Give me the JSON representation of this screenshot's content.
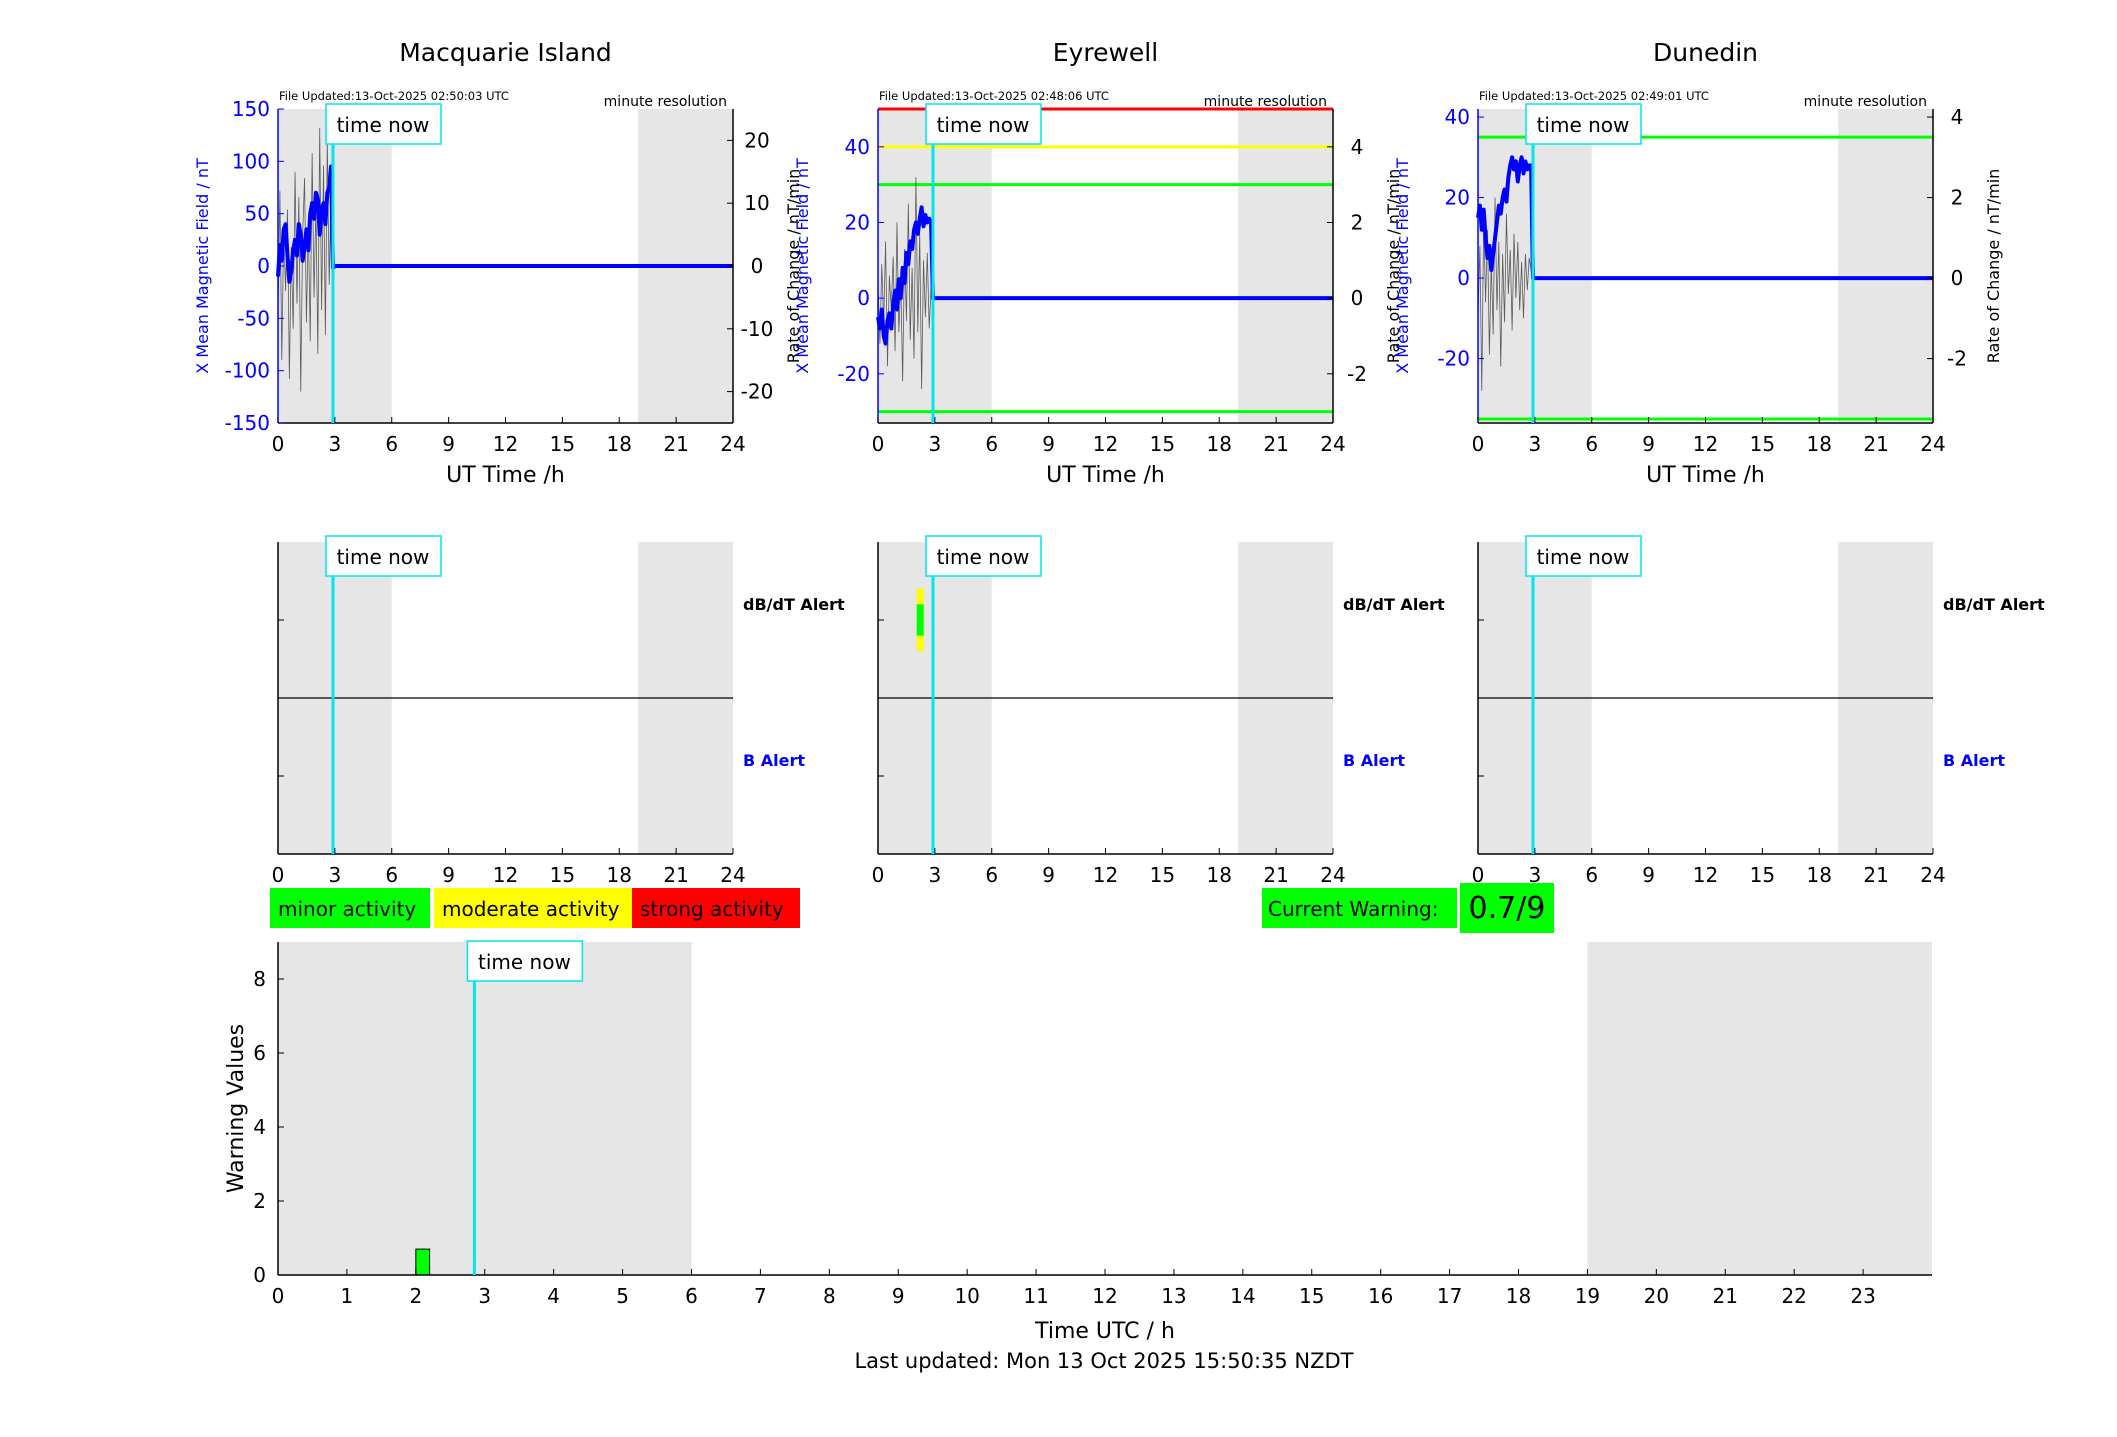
{
  "colors": {
    "night_shade": "#e6e6e6",
    "x_field": "#0000ff",
    "rate": "#000000",
    "time_now": "#00e5ee",
    "minor": "#00ff00",
    "moderate": "#ffff00",
    "strong": "#ff0000",
    "title": "#000000"
  },
  "common": {
    "resolution_label": "minute resolution",
    "time_now_label": "time now",
    "x_label": "UT Time /h",
    "x_ticks": [
      "0",
      "3",
      "6",
      "9",
      "12",
      "15",
      "18",
      "21",
      "24"
    ],
    "time_now_hour": 2.9,
    "night_shade_hours": [
      [
        0,
        6
      ],
      [
        19,
        24
      ]
    ],
    "right_axis_label": "Rate of Change / nT/min",
    "left_axis_label": "X Mean Magnetic Field / nT",
    "dbdt_alert_label": "dB/dT Alert",
    "b_alert_label": "B Alert"
  },
  "chart_data": [
    {
      "type": "line",
      "title": "Macquarie Island",
      "file_updated": "File Updated:13-Oct-2025 02:50:03 UTC",
      "xlim": [
        0,
        24
      ],
      "ylim": [
        -150,
        150
      ],
      "y_ticks": [
        "150",
        "100",
        "50",
        "0",
        "-50",
        "-100",
        "-150"
      ],
      "y2lim": [
        -25,
        25
      ],
      "y2_ticks": [
        "20",
        "10",
        "0",
        "-10",
        "-20"
      ],
      "series": [
        {
          "role": "x_field",
          "x": [
            0,
            0.1,
            0.2,
            0.3,
            0.4,
            0.5,
            0.6,
            0.7,
            0.8,
            0.9,
            1.0,
            1.1,
            1.2,
            1.3,
            1.4,
            1.5,
            1.6,
            1.7,
            1.8,
            1.9,
            2.0,
            2.1,
            2.2,
            2.3,
            2.4,
            2.5,
            2.6,
            2.7,
            2.8,
            2.9,
            3.0,
            24
          ],
          "y": [
            -10,
            20,
            5,
            35,
            40,
            10,
            -15,
            -5,
            15,
            25,
            10,
            40,
            30,
            5,
            20,
            35,
            15,
            50,
            60,
            45,
            70,
            65,
            30,
            55,
            60,
            40,
            70,
            75,
            95,
            -2,
            0,
            0
          ]
        },
        {
          "role": "rate",
          "x": [
            0,
            0.1,
            0.2,
            0.3,
            0.4,
            0.5,
            0.6,
            0.7,
            0.8,
            0.9,
            1.0,
            1.1,
            1.2,
            1.3,
            1.4,
            1.5,
            1.6,
            1.7,
            1.8,
            1.9,
            2.0,
            2.1,
            2.2,
            2.3,
            2.4,
            2.5,
            2.6,
            2.7,
            2.8,
            2.9,
            3.0,
            24
          ],
          "y": [
            -8,
            12,
            -15,
            6,
            -4,
            9,
            -18,
            3,
            -10,
            15,
            -6,
            11,
            -20,
            5,
            14,
            -9,
            7,
            -12,
            18,
            -5,
            10,
            -14,
            22,
            -7,
            16,
            -11,
            20,
            -3,
            12,
            0,
            0,
            0
          ]
        }
      ],
      "thresholds": []
    },
    {
      "type": "line",
      "title": "Eyrewell",
      "file_updated": "File Updated:13-Oct-2025 02:48:06 UTC",
      "xlim": [
        0,
        24
      ],
      "ylim": [
        -33,
        50
      ],
      "y_ticks": [
        "40",
        "20",
        "0",
        "-20"
      ],
      "y2lim": [
        -3.3,
        5
      ],
      "y2_ticks": [
        "4",
        "2",
        "0",
        "-2"
      ],
      "series": [
        {
          "role": "x_field",
          "x": [
            0,
            0.1,
            0.2,
            0.3,
            0.4,
            0.5,
            0.6,
            0.7,
            0.8,
            0.9,
            1.0,
            1.1,
            1.2,
            1.3,
            1.4,
            1.5,
            1.6,
            1.7,
            1.8,
            1.9,
            2.0,
            2.1,
            2.2,
            2.3,
            2.4,
            2.5,
            2.6,
            2.7,
            2.8,
            2.9,
            3.0,
            24
          ],
          "y": [
            -5,
            -8,
            -3,
            -10,
            -12,
            -6,
            -4,
            -8,
            -2,
            2,
            -3,
            5,
            0,
            8,
            4,
            12,
            9,
            15,
            13,
            18,
            20,
            17,
            21,
            24,
            19,
            22,
            20,
            21,
            20,
            0,
            0,
            0
          ]
        },
        {
          "role": "rate",
          "x": [
            0,
            0.1,
            0.2,
            0.3,
            0.4,
            0.5,
            0.6,
            0.7,
            0.8,
            0.9,
            1.0,
            1.1,
            1.2,
            1.3,
            1.4,
            1.5,
            1.6,
            1.7,
            1.8,
            1.9,
            2.0,
            2.1,
            2.2,
            2.3,
            2.4,
            2.5,
            2.6,
            2.7,
            2.8,
            2.9,
            3.0,
            24
          ],
          "y": [
            0.4,
            -1.2,
            0.9,
            -0.7,
            1.5,
            -1.8,
            0.6,
            -0.3,
            1.1,
            -1.4,
            2.0,
            -0.9,
            0.5,
            -2.2,
            1.3,
            -0.6,
            2.5,
            -1.1,
            0.8,
            -1.6,
            3.2,
            -0.9,
            1.7,
            -2.4,
            1.0,
            -0.5,
            1.2,
            -0.8,
            0.3,
            0,
            0,
            0
          ]
        }
      ],
      "thresholds": [
        {
          "y2": 5,
          "color": "#ff0000"
        },
        {
          "y2": 4,
          "color": "#ffff00"
        },
        {
          "y2": 3,
          "color": "#00ff00"
        },
        {
          "y2": -3,
          "color": "#00ff00"
        }
      ]
    },
    {
      "type": "line",
      "title": "Dunedin",
      "file_updated": "File Updated:13-Oct-2025 02:49:01 UTC",
      "xlim": [
        0,
        24
      ],
      "ylim": [
        -36,
        42
      ],
      "y_ticks": [
        "40",
        "20",
        "0",
        "-20"
      ],
      "y2lim": [
        -3.6,
        4.2
      ],
      "y2_ticks": [
        "4",
        "2",
        "0",
        "-2"
      ],
      "series": [
        {
          "role": "x_field",
          "x": [
            0,
            0.1,
            0.2,
            0.3,
            0.4,
            0.5,
            0.6,
            0.7,
            0.8,
            0.9,
            1.0,
            1.1,
            1.2,
            1.3,
            1.4,
            1.5,
            1.6,
            1.7,
            1.8,
            1.9,
            2.0,
            2.1,
            2.2,
            2.3,
            2.4,
            2.5,
            2.6,
            2.7,
            2.8,
            2.9,
            3.0,
            24
          ],
          "y": [
            15,
            18,
            12,
            17,
            10,
            5,
            8,
            2,
            6,
            10,
            14,
            18,
            16,
            20,
            22,
            19,
            25,
            28,
            30,
            27,
            29,
            24,
            28,
            30,
            26,
            29,
            27,
            28,
            28,
            0,
            0,
            0
          ]
        },
        {
          "role": "rate",
          "x": [
            0,
            0.1,
            0.2,
            0.3,
            0.4,
            0.5,
            0.6,
            0.7,
            0.8,
            0.9,
            1.0,
            1.1,
            1.2,
            1.3,
            1.4,
            1.5,
            1.6,
            1.7,
            1.8,
            1.9,
            2.0,
            2.1,
            2.2,
            2.3,
            2.4,
            2.5,
            2.6,
            2.7,
            2.8,
            2.9,
            3.0,
            24
          ],
          "y": [
            -1.0,
            0.8,
            -2.8,
            1.5,
            -0.6,
            1.2,
            -1.9,
            0.4,
            -1.4,
            2.0,
            -0.8,
            0.9,
            -2.2,
            0.6,
            -1.1,
            1.6,
            -0.4,
            0.7,
            -1.3,
            1.1,
            -0.5,
            0.9,
            -0.8,
            0.4,
            -1.0,
            0.6,
            -0.3,
            0.5,
            0.2,
            0,
            0,
            0
          ]
        }
      ],
      "thresholds": [
        {
          "y2": 3.5,
          "color": "#00ff00"
        },
        {
          "y2": -3.5,
          "color": "#00ff00"
        }
      ]
    }
  ],
  "alerts": [
    {
      "station": "Macquarie Island",
      "dbdt_alert": []
    },
    {
      "station": "Eyrewell",
      "dbdt_alert": [
        {
          "x": 2.2,
          "y_from": 0.65,
          "y_to": 0.85,
          "level": "moderate"
        },
        {
          "x": 2.2,
          "y_from": 0.7,
          "y_to": 0.8,
          "level": "minor"
        }
      ]
    },
    {
      "station": "Dunedin",
      "dbdt_alert": []
    }
  ],
  "legend": {
    "minor": "minor activity",
    "moderate": "moderate activity",
    "strong": "strong activity"
  },
  "current_warning": {
    "label": "Current Warning:",
    "value": "0.7/9"
  },
  "warning_chart": {
    "type": "bar",
    "ylabel": "Warning Values",
    "xlabel": "Time UTC / h",
    "xlim": [
      0,
      24
    ],
    "ylim": [
      0,
      9
    ],
    "x_ticks": [
      "0",
      "1",
      "2",
      "3",
      "4",
      "5",
      "6",
      "7",
      "8",
      "9",
      "10",
      "11",
      "12",
      "13",
      "14",
      "15",
      "16",
      "17",
      "18",
      "19",
      "20",
      "21",
      "22",
      "23"
    ],
    "y_ticks": [
      "0",
      "2",
      "4",
      "6",
      "8"
    ],
    "time_now_hour": 2.85,
    "night_shade_hours": [
      [
        0,
        6
      ],
      [
        19,
        24
      ]
    ],
    "bars": [
      {
        "x_start": 2.0,
        "x_end": 2.2,
        "value": 0.7
      }
    ]
  },
  "last_updated": "Last updated: Mon 13 Oct 2025 15:50:35 NZDT"
}
